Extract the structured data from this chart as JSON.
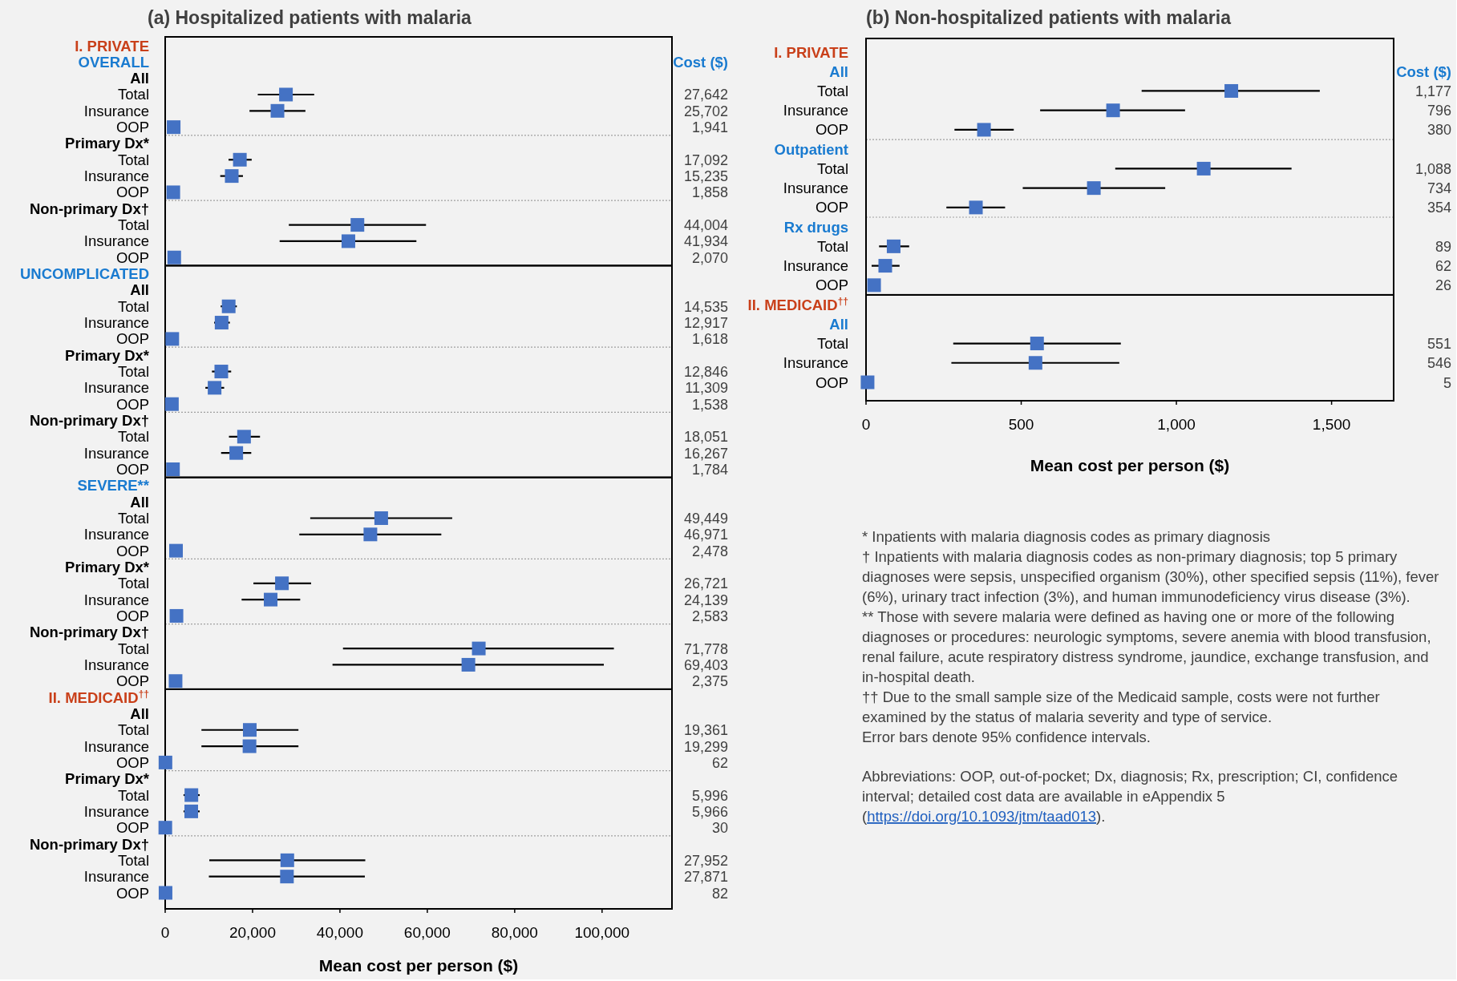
{
  "chart_data": [
    {
      "type": "scatter",
      "orientation": "horizontal",
      "marker": "square",
      "title": "(a) Hospitalized patients with malaria",
      "xlabel": "Mean cost per person ($)",
      "categories": [
        "I. PRIVATE",
        "OVERALL",
        "All",
        "Total",
        "Insurance",
        "OOP",
        "Primary Dx*",
        "Total",
        "Insurance",
        "OOP",
        "Non-primary Dx†",
        "Total",
        "Insurance",
        "OOP",
        "UNCOMPLICATED",
        "All",
        "Total",
        "Insurance",
        "OOP",
        "Primary Dx*",
        "Total",
        "Insurance",
        "OOP",
        "Non-primary Dx†",
        "Total",
        "Insurance",
        "OOP",
        "SEVERE**",
        "All",
        "Total",
        "Insurance",
        "OOP",
        "Primary Dx*",
        "Total",
        "Insurance",
        "OOP",
        "Non-primary Dx†",
        "Total",
        "Insurance",
        "OOP",
        "II. MEDICAID$^{††}$",
        "All",
        "Total",
        "Insurance",
        "OOP",
        "Primary Dx*",
        "Total",
        "Insurance",
        "OOP",
        "Non-primary Dx†",
        "Total",
        "Insurance",
        "OOP"
      ],
      "values": [
        null,
        null,
        null,
        27642,
        25702,
        1941,
        null,
        17092,
        15235,
        1858,
        null,
        44004,
        41934,
        2070,
        null,
        null,
        14535,
        12917,
        1618,
        null,
        12846,
        11309,
        1538,
        null,
        18051,
        16267,
        1784,
        null,
        null,
        49449,
        46971,
        2478,
        null,
        26721,
        24139,
        2583,
        null,
        71778,
        69403,
        2375,
        null,
        null,
        19361,
        19299,
        62,
        null,
        5996,
        5966,
        30,
        null,
        27952,
        27871,
        82
      ],
      "errors": [
        null,
        null,
        null,
        [
          21200,
          34100
        ],
        [
          19300,
          32100
        ],
        null,
        null,
        [
          14500,
          19800
        ],
        [
          12600,
          17800
        ],
        null,
        null,
        [
          28300,
          59700
        ],
        [
          26200,
          57500
        ],
        null,
        null,
        null,
        [
          12700,
          16400
        ],
        [
          11200,
          14800
        ],
        null,
        null,
        [
          10700,
          15100
        ],
        [
          9200,
          13500
        ],
        null,
        null,
        [
          14600,
          21700
        ],
        [
          12800,
          19700
        ],
        null,
        null,
        null,
        [
          33200,
          65700
        ],
        [
          30700,
          63200
        ],
        null,
        null,
        [
          20200,
          33400
        ],
        [
          17500,
          30900
        ],
        null,
        null,
        [
          40700,
          102700
        ],
        [
          38300,
          100400
        ],
        null,
        null,
        null,
        [
          8300,
          30500
        ],
        [
          8300,
          30500
        ],
        null,
        null,
        [
          4200,
          7900
        ],
        [
          4200,
          7900
        ],
        null,
        null,
        [
          10100,
          45800
        ],
        [
          10000,
          45700
        ],
        null
      ],
      "colors": [
        "#c9401a",
        "#1a7bd0",
        "#000000",
        "#4472c4",
        "#4472c4",
        "#4472c4",
        "#000000",
        "#4472c4",
        "#4472c4",
        "#4472c4",
        "#000000",
        "#4472c4",
        "#4472c4",
        "#4472c4",
        "#1a7bd0",
        "#000000",
        "#4472c4",
        "#4472c4",
        "#4472c4",
        "#000000",
        "#4472c4",
        "#4472c4",
        "#4472c4",
        "#000000",
        "#4472c4",
        "#4472c4",
        "#4472c4",
        "#1a7bd0",
        "#000000",
        "#4472c4",
        "#4472c4",
        "#4472c4",
        "#000000",
        "#4472c4",
        "#4472c4",
        "#4472c4",
        "#000000",
        "#4472c4",
        "#4472c4",
        "#4472c4",
        "#c9401a",
        "#000000",
        "#4472c4",
        "#4472c4",
        "#4472c4",
        "#000000",
        "#4472c4",
        "#4472c4",
        "#4472c4",
        "#000000",
        "#4472c4",
        "#4472c4",
        "#4472c4"
      ],
      "value_labels": [
        null,
        null,
        null,
        "27,642",
        "25,702",
        "1,941",
        null,
        "17,092",
        "15,235",
        "1,858",
        null,
        "44,004",
        "41,934",
        "2,070",
        null,
        null,
        "14,535",
        "12,917",
        "1,618",
        null,
        "12,846",
        "11,309",
        "1,538",
        null,
        "18,051",
        "16,267",
        "1,784",
        null,
        null,
        "49,449",
        "46,971",
        "2,478",
        null,
        "26,721",
        "24,139",
        "2,583",
        null,
        "71,778",
        "69,403",
        "2,375",
        null,
        null,
        "19,361",
        "19,299",
        "62",
        null,
        "5,996",
        "5,966",
        "30",
        null,
        "27,952",
        "27,871",
        "82"
      ],
      "xlim": [
        0,
        116000
      ],
      "xticks": [
        {
          "value": 0,
          "label": "0"
        },
        {
          "value": 20000,
          "label": "20,000"
        },
        {
          "value": 40000,
          "label": "40,000"
        },
        {
          "value": 60000,
          "label": "60,000"
        },
        {
          "value": 80000,
          "label": "80,000"
        },
        {
          "value": 100000,
          "label": "100,000"
        }
      ],
      "annotations": [
        "Cost ($)"
      ]
    },
    {
      "type": "scatter",
      "orientation": "horizontal",
      "marker": "square",
      "title": "(b) Non-hospitalized patients with malaria",
      "xlabel": "Mean cost per person ($)",
      "categories": [
        "I. PRIVATE",
        "All",
        "Total",
        "Insurance",
        "OOP",
        "Outpatient",
        "Total",
        "Insurance",
        "OOP",
        "Rx drugs",
        "Total",
        "Insurance",
        "OOP",
        "II. MEDICAID$^{††}$",
        "All",
        "Total",
        "Insurance",
        "OOP"
      ],
      "values": [
        null,
        null,
        1177,
        796,
        380,
        null,
        1088,
        734,
        354,
        null,
        89,
        62,
        26,
        null,
        null,
        551,
        546,
        5
      ],
      "errors": [
        null,
        null,
        [
          888,
          1462
        ],
        [
          561,
          1028
        ],
        [
          285,
          476
        ],
        null,
        [
          803,
          1371
        ],
        [
          505,
          964
        ],
        [
          259,
          448
        ],
        null,
        [
          42,
          139
        ],
        [
          18,
          108
        ],
        null,
        null,
        null,
        [
          281,
          821
        ],
        [
          275,
          816
        ],
        null
      ],
      "colors": [
        "#c9401a",
        "#1a7bd0",
        "#4472c4",
        "#4472c4",
        "#4472c4",
        "#1a7bd0",
        "#4472c4",
        "#4472c4",
        "#4472c4",
        "#1a7bd0",
        "#4472c4",
        "#4472c4",
        "#4472c4",
        "#c9401a",
        "#1a7bd0",
        "#4472c4",
        "#4472c4",
        "#4472c4"
      ],
      "value_labels": [
        null,
        null,
        "1,177",
        "796",
        "380",
        null,
        "1,088",
        "734",
        "354",
        null,
        "89",
        "62",
        "26",
        null,
        null,
        "551",
        "546",
        "5"
      ],
      "xlim": [
        0,
        1700
      ],
      "xticks": [
        {
          "value": 0,
          "label": "0"
        },
        {
          "value": 500,
          "label": "500"
        },
        {
          "value": 1000,
          "label": "1,000"
        },
        {
          "value": 1500,
          "label": "1,500"
        }
      ],
      "annotations": [
        "Cost ($)",
        "* Inpatients with malaria diagnosis codes as primary diagnosis",
        "† Inpatients with malaria diagnosis codes as non-primary diagnosis; top 5 primary diagnoses were sepsis, unspecified organism (30%), other specified sepsis (11%), fever (6%), urinary tract infection (3%), and human immunodeficiency virus disease (3%).",
        "** Those with severe malaria were defined as having one or more of the following diagnoses or procedures: neurologic symptoms, severe anemia with blood transfusion, renal failure, acute respiratory distress syndrome, jaundice, exchange transfusion, and in-hospital death.",
        "†† Due to the small sample size of the Medicaid sample, costs were not further examined by the status of malaria severity and type of service.",
        "Error bars denote 95% confidence intervals.",
        "Abbreviations: OOP, out-of-pocket; Dx, diagnosis; Rx, prescription; CI, confidence interval; detailed cost data are available in eAppendix 5 (https://doi.org/10.1093/jtm/taad013)."
      ]
    }
  ]
}
